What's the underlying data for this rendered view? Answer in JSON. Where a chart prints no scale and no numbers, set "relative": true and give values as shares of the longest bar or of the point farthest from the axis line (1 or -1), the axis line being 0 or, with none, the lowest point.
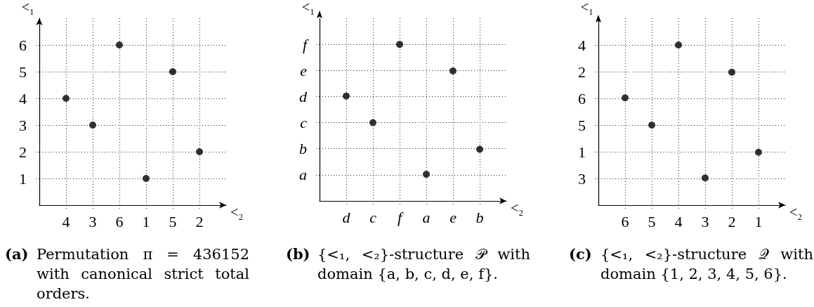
{
  "chart_data": [
    {
      "type": "scatter",
      "xlabel": "<₂",
      "ylabel": "<₁",
      "categories": [
        "4",
        "3",
        "6",
        "1",
        "5",
        "2"
      ],
      "values": [
        4,
        3,
        6,
        1,
        5,
        2
      ],
      "color": "#000000",
      "ylim": [
        0,
        7
      ],
      "yticks": [
        1,
        2,
        3,
        4,
        5,
        6
      ],
      "grid": true,
      "marker": "circle",
      "annotations": [
        "(a) Permutation π = 436152 with canonical strict total orders."
      ]
    },
    {
      "type": "scatter",
      "relative": true,
      "xlabel": "<₂",
      "ylabel": "<₁",
      "categories": [
        "d",
        "c",
        "f",
        "a",
        "e",
        "b"
      ],
      "y_categories": [
        "f",
        "e",
        "d",
        "c",
        "b",
        "a"
      ],
      "values": [
        0.67,
        0.5,
        1,
        0.17,
        0.83,
        0.33
      ],
      "color": "#000000",
      "grid": true,
      "marker": "circle",
      "annotations": [
        "(b) {<₁, <₂}-structure 𝒫 with domain {a, b, c, d, e, f}."
      ]
    },
    {
      "type": "scatter",
      "relative": true,
      "xlabel": "<₂",
      "ylabel": "<₁",
      "categories": [
        "6",
        "5",
        "4",
        "3",
        "2",
        "1"
      ],
      "y_categories": [
        "4",
        "2",
        "6",
        "5",
        "1",
        "3"
      ],
      "values": [
        0.67,
        0.5,
        1,
        0.17,
        0.83,
        0.33
      ],
      "color": "#000000",
      "grid": true,
      "marker": "circle",
      "annotations": [
        "(c) {<₁, <₂}-structure 𝒬 with domain {1, 2, 3, 4, 5, 6}."
      ]
    }
  ]
}
